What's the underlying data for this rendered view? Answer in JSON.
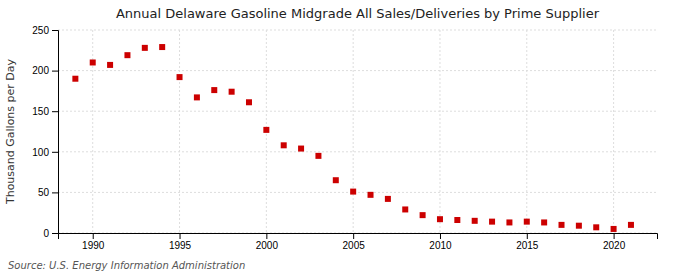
{
  "chart_data": {
    "type": "scatter",
    "title": "Annual Delaware Gasoline Midgrade All Sales/Deliveries by Prime Supplier",
    "ylabel": "Thousand Gallons per Day",
    "source": "Source: U.S. Energy Information Administration",
    "x": [
      1989,
      1990,
      1991,
      1992,
      1993,
      1994,
      1995,
      1996,
      1997,
      1998,
      1999,
      2000,
      2001,
      2002,
      2003,
      2004,
      2005,
      2006,
      2007,
      2008,
      2009,
      2010,
      2011,
      2012,
      2013,
      2014,
      2015,
      2016,
      2017,
      2018,
      2019,
      2020,
      2021
    ],
    "values": [
      190,
      210,
      207,
      219,
      228,
      229,
      192,
      167,
      176,
      174,
      161,
      127,
      108,
      104,
      95,
      65,
      51,
      47,
      42,
      29,
      22,
      17,
      16,
      15,
      14,
      13,
      14,
      13,
      10,
      9,
      7,
      5,
      10
    ],
    "color": "#cc0000",
    "marker": "square",
    "xlim": [
      1988.0,
      2022.5
    ],
    "ylim": [
      0,
      250
    ],
    "xticks": [
      1990,
      1995,
      2000,
      2005,
      2010,
      2015,
      2020
    ],
    "yticks": [
      0,
      50,
      100,
      150,
      200,
      250
    ],
    "grid": true
  }
}
